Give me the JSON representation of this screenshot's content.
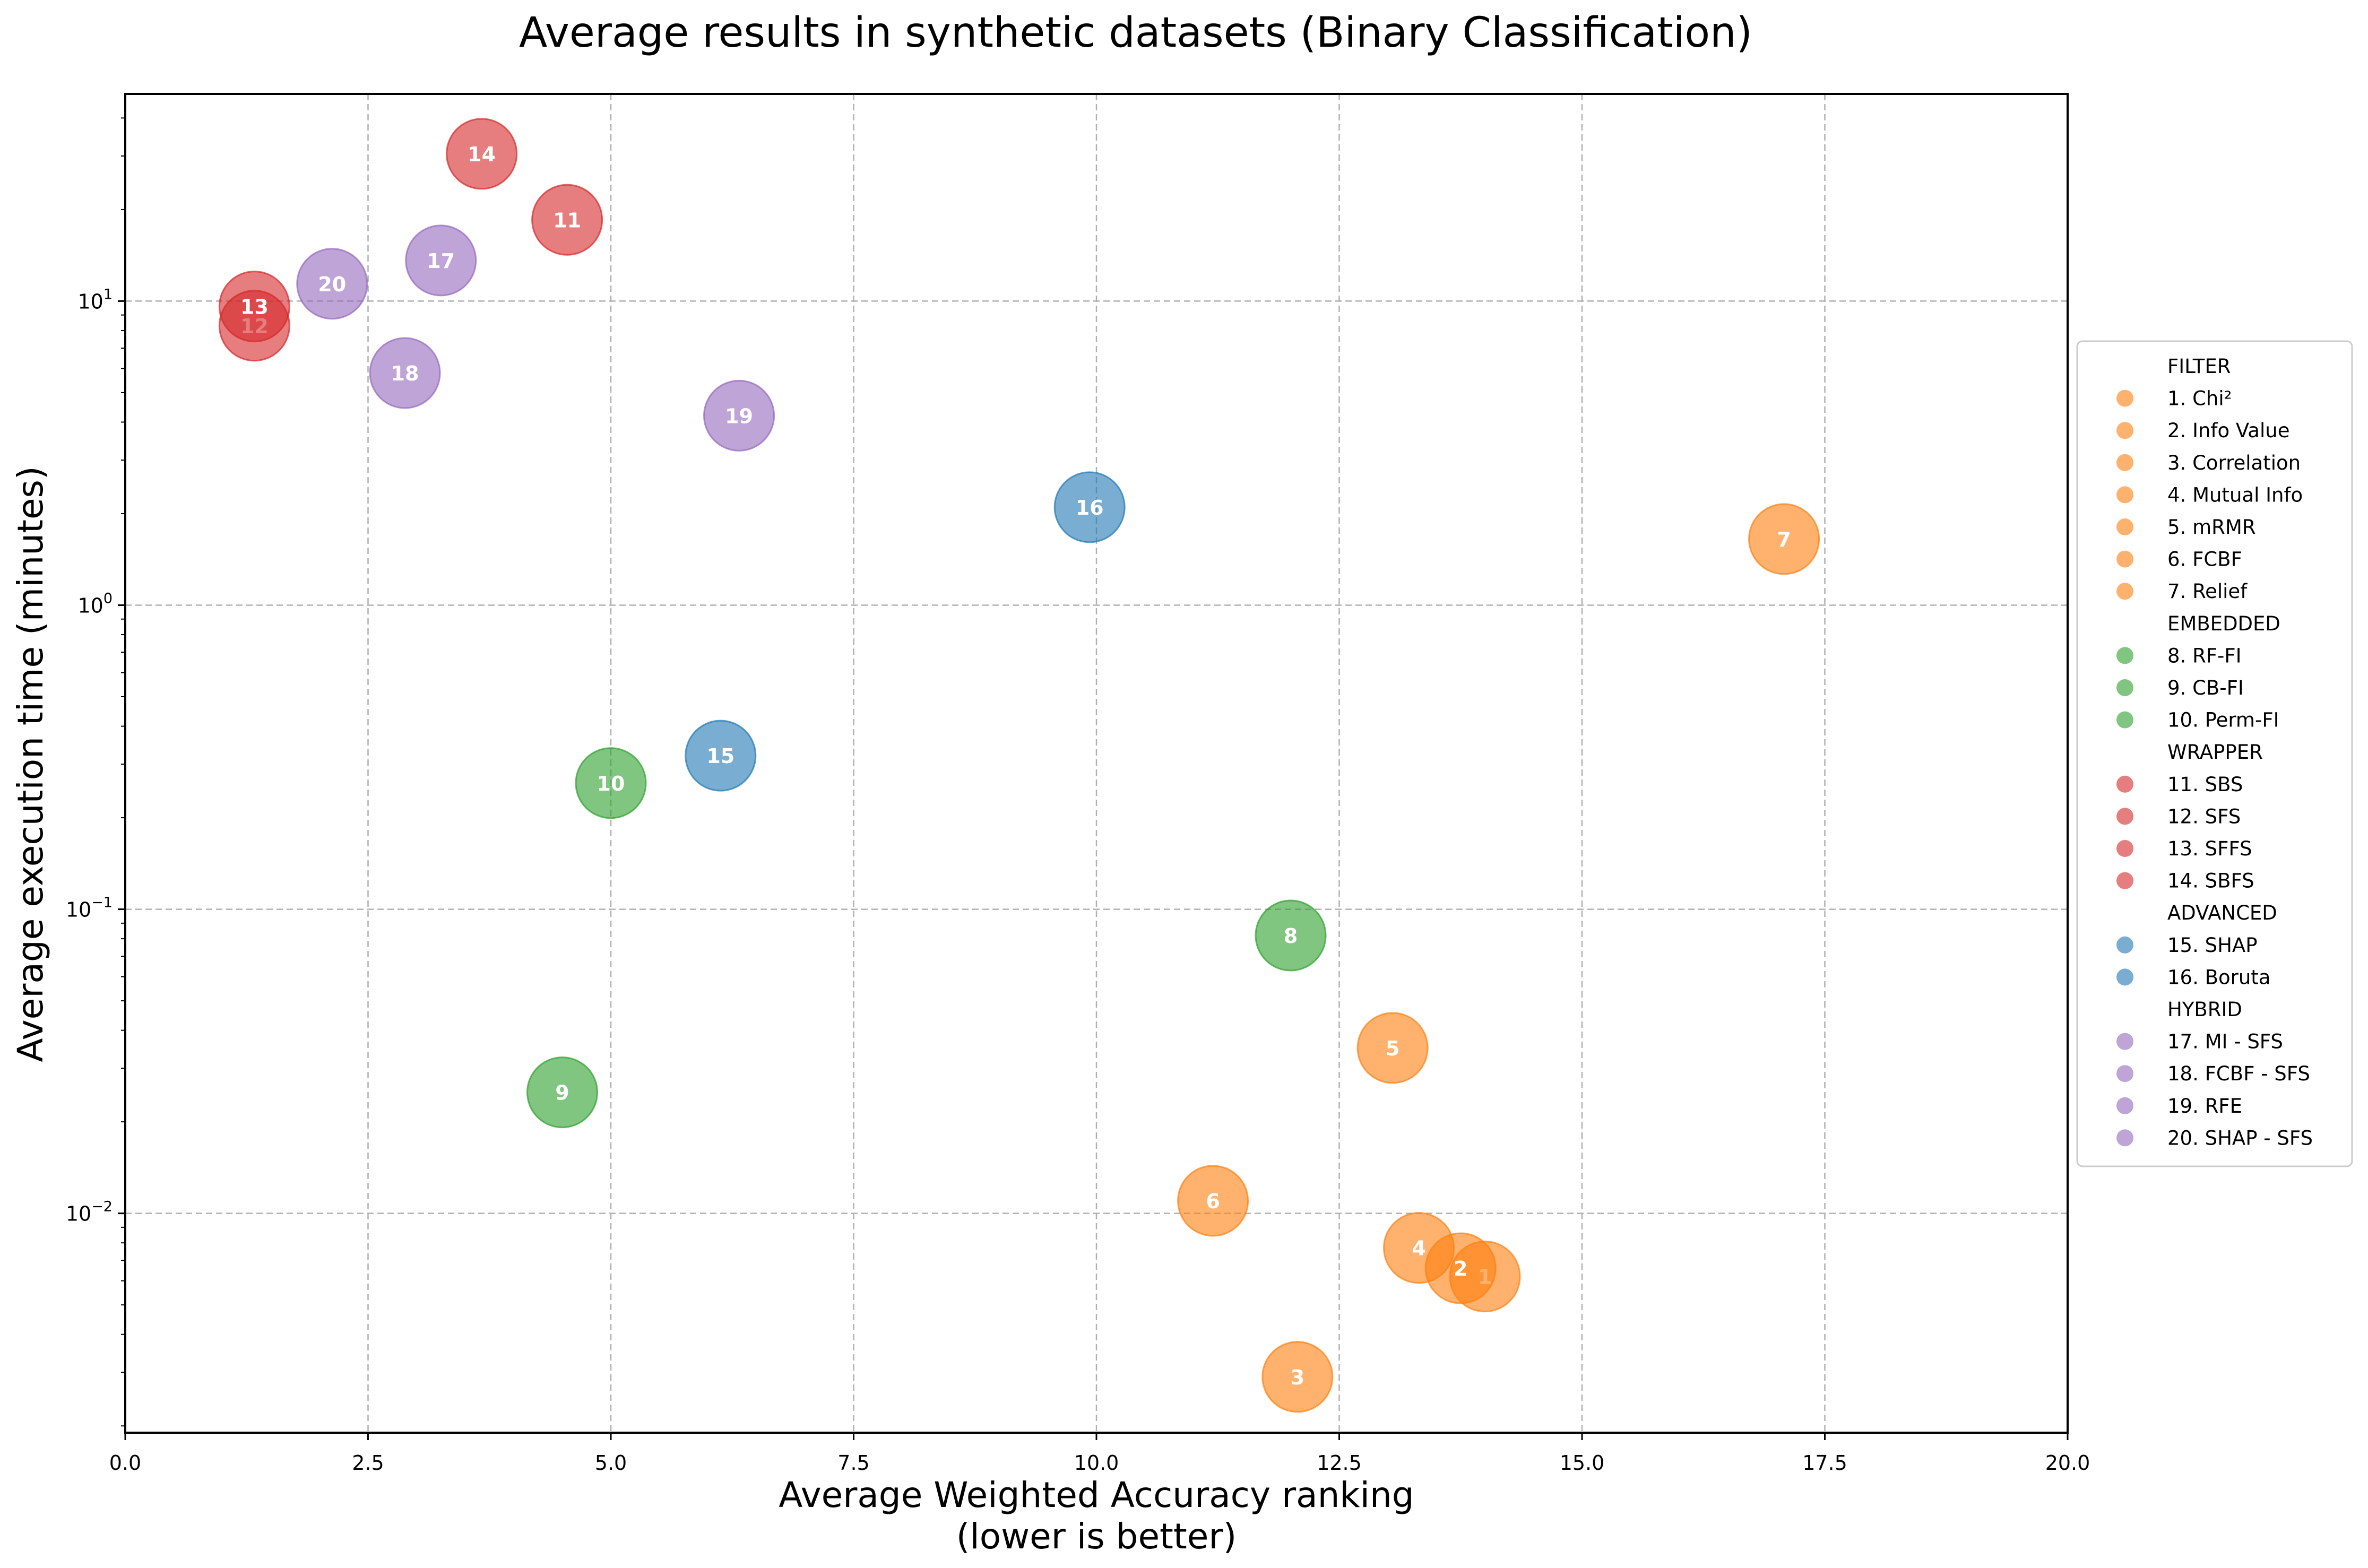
{
  "chart_data": {
    "type": "scatter",
    "title": "Average results in synthetic datasets (Binary Classification)",
    "xlabel": "Average Weighted Accuracy ranking",
    "xlabel_line2": "(lower is better)",
    "ylabel": "Average execution time (minutes)",
    "xlim": [
      0,
      20
    ],
    "ylim": [
      0.0019,
      48
    ],
    "yscale": "log",
    "grid": true,
    "legend_position": "right",
    "x_ticks": [
      0,
      2.5,
      5,
      7.5,
      10,
      12.5,
      15,
      17.5,
      20
    ],
    "x_tick_labels": [
      "0.0",
      "2.5",
      "5.0",
      "7.5",
      "10.0",
      "12.5",
      "15.0",
      "17.5",
      "20.0"
    ],
    "y_ticks": [
      0.01,
      0.1,
      1,
      10
    ],
    "y_tick_labels": [
      {
        "base": "10",
        "exp": "−2"
      },
      {
        "base": "10",
        "exp": "−1"
      },
      {
        "base": "10",
        "exp": "0"
      },
      {
        "base": "10",
        "exp": "1"
      }
    ],
    "groups": [
      {
        "name": "FILTER",
        "color": "#ff7f0e"
      },
      {
        "name": "EMBEDDED",
        "color": "#2ca02c"
      },
      {
        "name": "WRAPPER",
        "color": "#d62728"
      },
      {
        "name": "ADVANCED",
        "color": "#1f77b4"
      },
      {
        "name": "HYBRID",
        "color": "#9467bd"
      }
    ],
    "points": [
      {
        "id": "1",
        "label": "1. Chi²",
        "group": "FILTER",
        "x": 14.0,
        "y": 0.0062
      },
      {
        "id": "2",
        "label": "2. Info Value",
        "group": "FILTER",
        "x": 13.75,
        "y": 0.0066
      },
      {
        "id": "3",
        "label": "3. Correlation",
        "group": "FILTER",
        "x": 12.07,
        "y": 0.0029
      },
      {
        "id": "4",
        "label": "4. Mutual Info",
        "group": "FILTER",
        "x": 13.32,
        "y": 0.0077
      },
      {
        "id": "5",
        "label": "5. mRMR",
        "group": "FILTER",
        "x": 13.05,
        "y": 0.035
      },
      {
        "id": "6",
        "label": "6. FCBF",
        "group": "FILTER",
        "x": 11.2,
        "y": 0.011
      },
      {
        "id": "7",
        "label": "7. Relief",
        "group": "FILTER",
        "x": 17.08,
        "y": 1.65
      },
      {
        "id": "8",
        "label": "8. RF-FI",
        "group": "EMBEDDED",
        "x": 12.0,
        "y": 0.082
      },
      {
        "id": "9",
        "label": "9. CB-FI",
        "group": "EMBEDDED",
        "x": 4.5,
        "y": 0.025
      },
      {
        "id": "10",
        "label": "10. Perm-FI",
        "group": "EMBEDDED",
        "x": 5.0,
        "y": 0.26
      },
      {
        "id": "11",
        "label": "11. SBS",
        "group": "WRAPPER",
        "x": 4.55,
        "y": 18.5
      },
      {
        "id": "12",
        "label": "12. SFS",
        "group": "WRAPPER",
        "x": 1.33,
        "y": 8.3
      },
      {
        "id": "13",
        "label": "13. SFFS",
        "group": "WRAPPER",
        "x": 1.33,
        "y": 9.6
      },
      {
        "id": "14",
        "label": "14. SBFS",
        "group": "WRAPPER",
        "x": 3.67,
        "y": 30.5
      },
      {
        "id": "15",
        "label": "15. SHAP",
        "group": "ADVANCED",
        "x": 6.13,
        "y": 0.32
      },
      {
        "id": "16",
        "label": "16. Boruta",
        "group": "ADVANCED",
        "x": 9.93,
        "y": 2.1
      },
      {
        "id": "17",
        "label": "17. MI - SFS",
        "group": "HYBRID",
        "x": 3.25,
        "y": 13.6
      },
      {
        "id": "18",
        "label": "18. FCBF - SFS",
        "group": "HYBRID",
        "x": 2.88,
        "y": 5.8
      },
      {
        "id": "19",
        "label": "19. RFE",
        "group": "HYBRID",
        "x": 6.32,
        "y": 4.2
      },
      {
        "id": "20",
        "label": "20. SHAP - SFS",
        "group": "HYBRID",
        "x": 2.13,
        "y": 11.4
      }
    ]
  }
}
